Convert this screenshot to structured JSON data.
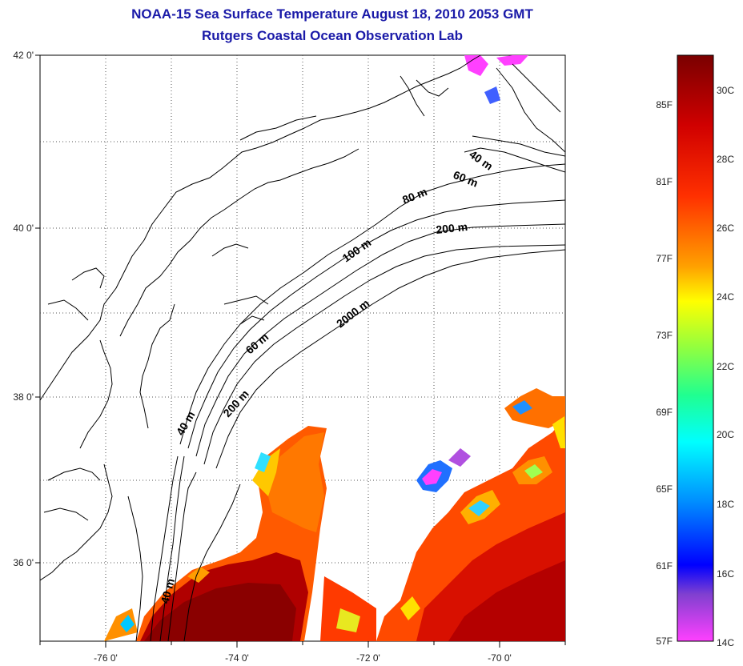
{
  "title": "NOAA-15 Sea Surface Temperature August 18, 2010 2053 GMT",
  "subtitle": "Rutgers Coastal Ocean Observation Lab",
  "map": {
    "lat_ticks": [
      "42 0'",
      "40 0'",
      "38 0'",
      "36 0'"
    ],
    "lon_ticks": [
      "-76 0'",
      "-74 0'",
      "-72 0'",
      "-70 0'"
    ],
    "contour_labels": [
      "40 m",
      "60 m",
      "80 m",
      "200 m",
      "100 m",
      "2000 m",
      "60 m",
      "40 m",
      "200 m",
      "40 m"
    ],
    "grid": true
  },
  "colorbar": {
    "fahrenheit_labels": [
      "85F",
      "81F",
      "77F",
      "73F",
      "69F",
      "65F",
      "61F",
      "57F"
    ],
    "celsius_labels": [
      "30C",
      "28C",
      "26C",
      "24C",
      "22C",
      "20C",
      "18C",
      "16C",
      "14C"
    ],
    "colors": [
      "#7a0000",
      "#c80000",
      "#ff2a00",
      "#ff7a00",
      "#ffc800",
      "#ffff00",
      "#a0ff40",
      "#20ff90",
      "#00ffff",
      "#0090ff",
      "#0000ff",
      "#8040d0",
      "#ff40ff"
    ]
  }
}
